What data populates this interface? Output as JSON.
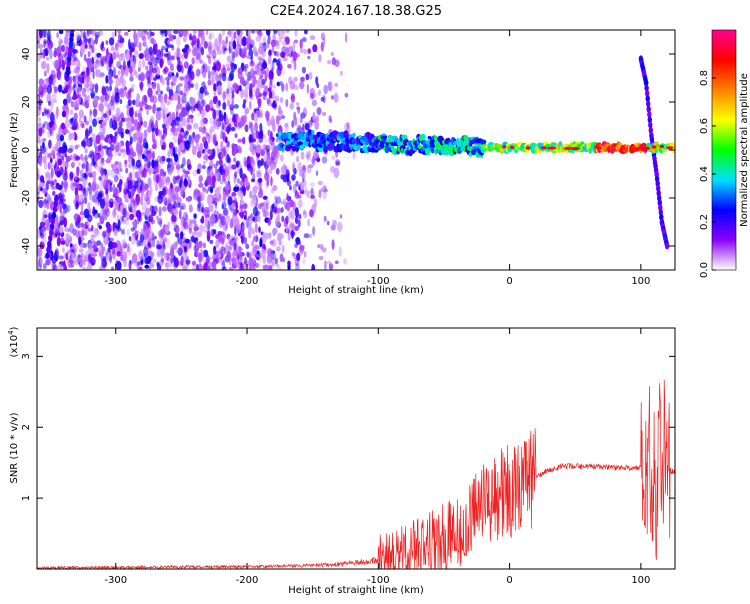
{
  "title": "C2E4.2024.167.18.38.G25",
  "chart_data": [
    {
      "type": "heatmap",
      "xlabel": "Height of straight line (km)",
      "ylabel": "Frequency (Hz)",
      "xlim": [
        -360,
        126
      ],
      "ylim": [
        -50,
        50
      ],
      "x_ticks": [
        -300,
        -200,
        -100,
        0,
        100
      ],
      "y_ticks": [
        -40,
        -20,
        0,
        20,
        40
      ],
      "colorbar": {
        "label": "Normalized spectral amplitude",
        "range": [
          0,
          1
        ],
        "ticks": [
          "0.0",
          "0.2",
          "0.4",
          "0.6",
          "0.8"
        ],
        "tick_values": [
          0,
          0.2,
          0.4,
          0.6,
          0.8
        ],
        "colors": [
          "#ffffff",
          "#8c00ff",
          "#0000ff",
          "#00e0ff",
          "#00ff00",
          "#ffff00",
          "#ff8000",
          "#ff0000",
          "#ff0090"
        ]
      },
      "noise_region": {
        "x_range": [
          -360,
          -118
        ],
        "y_range": [
          -50,
          50
        ]
      },
      "features": [
        {
          "name": "streak",
          "points": [
            [
              -352,
              -44
            ],
            [
              -345,
              -20
            ],
            [
              -337,
              30
            ],
            [
              -333,
              50
            ]
          ]
        },
        {
          "name": "spike",
          "points": [
            [
              100,
              38
            ],
            [
              104,
              28
            ],
            [
              108,
              6
            ],
            [
              112,
              -10
            ],
            [
              116,
              -30
            ],
            [
              120,
              -40
            ]
          ]
        }
      ],
      "ridge": {
        "points": [
          [
            -175,
            4
          ],
          [
            -150,
            4
          ],
          [
            -130,
            3.5
          ],
          [
            -110,
            3
          ],
          [
            -90,
            2.5
          ],
          [
            -70,
            2
          ],
          [
            -50,
            2
          ],
          [
            -30,
            1.5
          ],
          [
            -10,
            1
          ],
          [
            10,
            1
          ],
          [
            30,
            1
          ],
          [
            50,
            1
          ],
          [
            70,
            1
          ],
          [
            90,
            1
          ],
          [
            110,
            1
          ],
          [
            126,
            1
          ]
        ]
      }
    },
    {
      "type": "line",
      "xlabel": "Height of straight line (km)",
      "ylabel": "SNR (10 * v/v)",
      "y_scale_label": "(x10",
      "y_scale_exp": "4",
      "y_scale_close": ")",
      "xlim": [
        -360,
        126
      ],
      "ylim": [
        0,
        3.4
      ],
      "x_ticks": [
        -300,
        -200,
        -100,
        0,
        100
      ],
      "y_ticks": [
        1,
        2,
        3
      ],
      "color": "#ee2222",
      "series": [
        {
          "x": [
            -360,
            -300,
            -250,
            -200,
            -150,
            -120,
            -100,
            -80,
            -60,
            -40,
            -30,
            -20,
            -10,
            0,
            10,
            20,
            30,
            40,
            60,
            80,
            100,
            105,
            108,
            110,
            112,
            114,
            116,
            118,
            120,
            126
          ],
          "y": [
            0.02,
            0.02,
            0.03,
            0.03,
            0.05,
            0.08,
            0.13,
            0.22,
            0.35,
            0.55,
            0.75,
            0.9,
            1.05,
            1.1,
            1.2,
            1.3,
            1.4,
            1.45,
            1.45,
            1.43,
            1.42,
            1.45,
            1.2,
            1.6,
            0.8,
            2.4,
            1.0,
            1.8,
            1.4,
            1.38
          ]
        }
      ]
    }
  ]
}
